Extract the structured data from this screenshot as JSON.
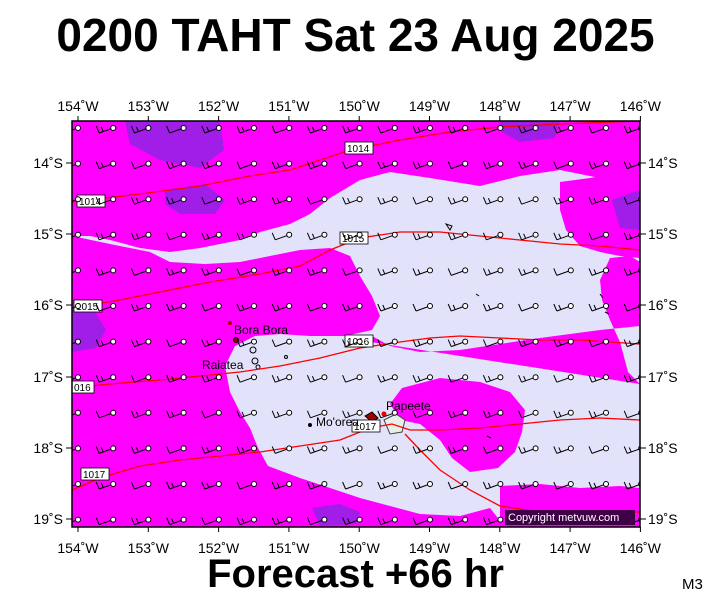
{
  "header": {
    "title": "0200 TAHT Sat 23 Aug 2025"
  },
  "footer": {
    "forecast": "Forecast +66 hr",
    "model": "M3"
  },
  "copyright": "Copyright metvuw.com",
  "axes": {
    "lon_labels": [
      "154˚W",
      "153˚W",
      "152˚W",
      "151˚W",
      "150˚W",
      "149˚W",
      "148˚W",
      "147˚W",
      "146˚W"
    ],
    "lat_labels": [
      "14˚S",
      "15˚S",
      "16˚S",
      "17˚S",
      "18˚S",
      "19˚S"
    ]
  },
  "places": [
    "Bora Bora",
    "Raiatea",
    "Mo'orea",
    "Papeete"
  ],
  "isobars": [
    {
      "label": "1014"
    },
    {
      "label": "1014"
    },
    {
      "label": "1015"
    },
    {
      "label": "1015"
    },
    {
      "label": "1016"
    },
    {
      "label": "016"
    },
    {
      "label": "1017"
    },
    {
      "label": "1017"
    }
  ],
  "colors": {
    "light_wind": "#e2e2fb",
    "moderate_wind": "#ff00ff",
    "strong_wind": "#a01ee8",
    "isobar": "#ff0000",
    "copyright_bg": "#400048"
  },
  "wind_barbs": {
    "direction": "east-southeast",
    "feathers": "light, one to two barbs"
  }
}
